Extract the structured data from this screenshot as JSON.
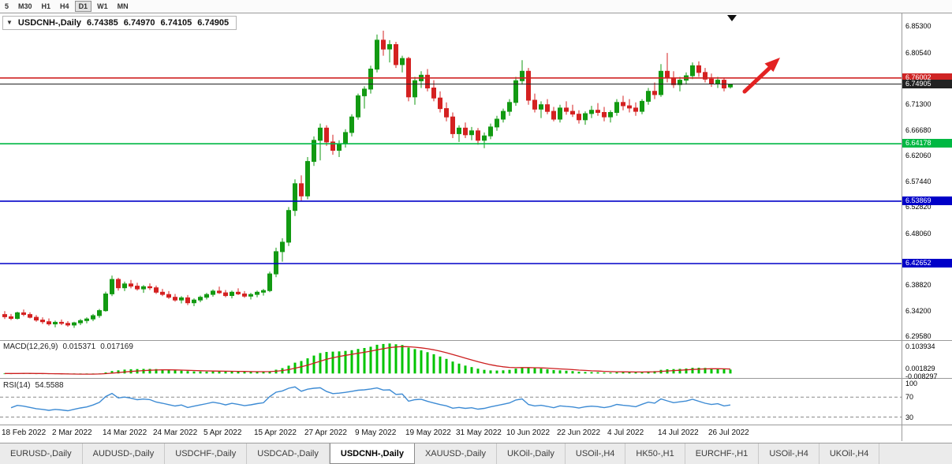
{
  "toolbar": {
    "timeframes": [
      {
        "label": "5",
        "active": false
      },
      {
        "label": "M30",
        "active": false
      },
      {
        "label": "H1",
        "active": false
      },
      {
        "label": "H4",
        "active": false
      },
      {
        "label": "D1",
        "active": true
      },
      {
        "label": "W1",
        "active": false
      },
      {
        "label": "MN",
        "active": false
      }
    ]
  },
  "chart": {
    "title": {
      "symbol": "USDCNH-,Daily",
      "open": "6.74385",
      "high": "6.74970",
      "low": "6.74105",
      "close": "6.74905"
    },
    "y_ticks": [
      {
        "label": "6.85300",
        "price": 6.853
      },
      {
        "label": "6.80540",
        "price": 6.8054
      },
      {
        "label": "6.71300",
        "price": 6.713
      },
      {
        "label": "6.66680",
        "price": 6.6668
      },
      {
        "label": "6.62060",
        "price": 6.6206
      },
      {
        "label": "6.57440",
        "price": 6.5744
      },
      {
        "label": "6.52820",
        "price": 6.5282
      },
      {
        "label": "6.48060",
        "price": 6.4806
      },
      {
        "label": "6.38820",
        "price": 6.3882
      },
      {
        "label": "6.34200",
        "price": 6.342
      },
      {
        "label": "6.29580",
        "price": 6.2958
      }
    ],
    "price_lines": [
      {
        "label": "6.76002",
        "price": 6.76002,
        "color": "#cf2424",
        "width": 1.6
      },
      {
        "label": "6.74905",
        "price": 6.74905,
        "color": "#222222",
        "width": 1,
        "current": true
      },
      {
        "label": "6.64178",
        "price": 6.64178,
        "color": "#00b843",
        "width": 1.6
      },
      {
        "label": "6.53869",
        "price": 6.53869,
        "color": "#0000c8",
        "width": 1.6
      },
      {
        "label": "6.42652",
        "price": 6.42652,
        "color": "#0000c8",
        "width": 1.6
      }
    ]
  },
  "macd": {
    "name": "MACD(12,26,9)",
    "value": "0.015371",
    "signal_value": "0.017169",
    "axis": [
      "0.103934",
      "0.001829",
      "-0.008297"
    ]
  },
  "rsi": {
    "name": "RSI(14)",
    "value": "54.5588",
    "axis": [
      100,
      70,
      30
    ],
    "levels": [
      70,
      30
    ]
  },
  "tabs": [
    {
      "label": "EURUSD-,Daily",
      "active": false
    },
    {
      "label": "AUDUSD-,Daily",
      "active": false
    },
    {
      "label": "USDCHF-,Daily",
      "active": false
    },
    {
      "label": "USDCAD-,Daily",
      "active": false
    },
    {
      "label": "USDCNH-,Daily",
      "active": true
    },
    {
      "label": "XAUUSD-,Daily",
      "active": false
    },
    {
      "label": "UKOil-,Daily",
      "active": false
    },
    {
      "label": "USOil-,H4",
      "active": false
    },
    {
      "label": "HK50-,H1",
      "active": false
    },
    {
      "label": "EURCHF-,H1",
      "active": false
    },
    {
      "label": "USOil-,H4",
      "active": false
    },
    {
      "label": "UKOil-,H4",
      "active": false
    }
  ],
  "colors": {
    "up": "#129a12",
    "down": "#d42121",
    "macd_hist": "#00c400",
    "macd_signal": "#cc1f1f",
    "rsi_line": "#3d8bd4",
    "arrow": "#e32222",
    "separator": "#9a9a9a"
  },
  "chart_data": {
    "type": "candlestick",
    "symbol": "USDCNH-",
    "timeframe": "Daily",
    "ohlc_current": {
      "open": 6.74385,
      "high": 6.7497,
      "low": 6.74105,
      "close": 6.74905
    },
    "ylim": [
      6.289,
      6.876
    ],
    "x_labels": [
      {
        "label": "18 Feb 2022",
        "i": 0
      },
      {
        "label": "2 Mar 2022",
        "i": 8
      },
      {
        "label": "14 Mar 2022",
        "i": 16
      },
      {
        "label": "24 Mar 2022",
        "i": 24
      },
      {
        "label": "5 Apr 2022",
        "i": 32
      },
      {
        "label": "15 Apr 2022",
        "i": 40
      },
      {
        "label": "27 Apr 2022",
        "i": 48
      },
      {
        "label": "9 May 2022",
        "i": 56
      },
      {
        "label": "19 May 2022",
        "i": 64
      },
      {
        "label": "31 May 2022",
        "i": 72
      },
      {
        "label": "10 Jun 2022",
        "i": 80
      },
      {
        "label": "22 Jun 2022",
        "i": 88
      },
      {
        "label": "4 Jul 2022",
        "i": 96
      },
      {
        "label": "14 Jul 2022",
        "i": 104
      },
      {
        "label": "26 Jul 2022",
        "i": 112
      }
    ],
    "candles": [
      [
        6.335,
        6.341,
        6.327,
        6.331
      ],
      [
        6.331,
        6.336,
        6.325,
        6.328
      ],
      [
        6.328,
        6.34,
        6.326,
        6.338
      ],
      [
        6.338,
        6.344,
        6.332,
        6.335
      ],
      [
        6.335,
        6.339,
        6.328,
        6.33
      ],
      [
        6.33,
        6.334,
        6.322,
        6.325
      ],
      [
        6.325,
        6.33,
        6.318,
        6.322
      ],
      [
        6.322,
        6.328,
        6.315,
        6.318
      ],
      [
        6.318,
        6.324,
        6.312,
        6.321
      ],
      [
        6.321,
        6.326,
        6.316,
        6.319
      ],
      [
        6.319,
        6.323,
        6.313,
        6.316
      ],
      [
        6.316,
        6.322,
        6.311,
        6.32
      ],
      [
        6.32,
        6.327,
        6.316,
        6.324
      ],
      [
        6.324,
        6.33,
        6.319,
        6.327
      ],
      [
        6.327,
        6.336,
        6.323,
        6.333
      ],
      [
        6.333,
        6.345,
        6.329,
        6.342
      ],
      [
        6.342,
        6.376,
        6.34,
        6.372
      ],
      [
        6.372,
        6.405,
        6.368,
        6.398
      ],
      [
        6.398,
        6.401,
        6.378,
        6.383
      ],
      [
        6.383,
        6.394,
        6.377,
        6.39
      ],
      [
        6.39,
        6.397,
        6.382,
        6.386
      ],
      [
        6.386,
        6.392,
        6.378,
        6.381
      ],
      [
        6.381,
        6.388,
        6.374,
        6.385
      ],
      [
        6.385,
        6.391,
        6.379,
        6.383
      ],
      [
        6.383,
        6.387,
        6.372,
        6.375
      ],
      [
        6.375,
        6.381,
        6.368,
        6.371
      ],
      [
        6.371,
        6.377,
        6.363,
        6.366
      ],
      [
        6.366,
        6.372,
        6.358,
        6.361
      ],
      [
        6.361,
        6.368,
        6.355,
        6.365
      ],
      [
        6.365,
        6.37,
        6.352,
        6.356
      ],
      [
        6.356,
        6.364,
        6.35,
        6.361
      ],
      [
        6.361,
        6.369,
        6.357,
        6.366
      ],
      [
        6.366,
        6.374,
        6.362,
        6.371
      ],
      [
        6.371,
        6.38,
        6.367,
        6.377
      ],
      [
        6.377,
        6.385,
        6.372,
        6.374
      ],
      [
        6.374,
        6.379,
        6.366,
        6.369
      ],
      [
        6.369,
        6.378,
        6.364,
        6.375
      ],
      [
        6.375,
        6.382,
        6.37,
        6.372
      ],
      [
        6.372,
        6.377,
        6.365,
        6.368
      ],
      [
        6.368,
        6.374,
        6.362,
        6.371
      ],
      [
        6.371,
        6.378,
        6.366,
        6.375
      ],
      [
        6.375,
        6.381,
        6.369,
        6.378
      ],
      [
        6.378,
        6.412,
        6.375,
        6.408
      ],
      [
        6.408,
        6.455,
        6.402,
        6.448
      ],
      [
        6.448,
        6.472,
        6.43,
        6.465
      ],
      [
        6.465,
        6.528,
        6.458,
        6.522
      ],
      [
        6.522,
        6.578,
        6.512,
        6.57
      ],
      [
        6.57,
        6.585,
        6.538,
        6.548
      ],
      [
        6.548,
        6.618,
        6.542,
        6.61
      ],
      [
        6.61,
        6.655,
        6.602,
        6.648
      ],
      [
        6.648,
        6.678,
        6.612,
        6.67
      ],
      [
        6.67,
        6.675,
        6.638,
        6.645
      ],
      [
        6.645,
        6.658,
        6.622,
        6.63
      ],
      [
        6.63,
        6.648,
        6.618,
        6.642
      ],
      [
        6.642,
        6.668,
        6.635,
        6.662
      ],
      [
        6.662,
        6.695,
        6.655,
        6.69
      ],
      [
        6.69,
        6.732,
        6.685,
        6.728
      ],
      [
        6.728,
        6.745,
        6.705,
        6.74
      ],
      [
        6.74,
        6.782,
        6.732,
        6.776
      ],
      [
        6.776,
        6.838,
        6.77,
        6.828
      ],
      [
        6.828,
        6.845,
        6.8,
        6.812
      ],
      [
        6.812,
        6.828,
        6.788,
        6.82
      ],
      [
        6.82,
        6.825,
        6.778,
        6.784
      ],
      [
        6.784,
        6.8,
        6.77,
        6.795
      ],
      [
        6.795,
        6.798,
        6.718,
        6.726
      ],
      [
        6.726,
        6.762,
        6.712,
        6.755
      ],
      [
        6.755,
        6.772,
        6.742,
        6.765
      ],
      [
        6.765,
        6.776,
        6.736,
        6.742
      ],
      [
        6.742,
        6.756,
        6.718,
        6.724
      ],
      [
        6.724,
        6.736,
        6.698,
        6.705
      ],
      [
        6.705,
        6.716,
        6.682,
        6.69
      ],
      [
        6.69,
        6.698,
        6.652,
        6.66
      ],
      [
        6.66,
        6.675,
        6.645,
        6.67
      ],
      [
        6.67,
        6.68,
        6.652,
        6.658
      ],
      [
        6.658,
        6.672,
        6.648,
        6.665
      ],
      [
        6.665,
        6.67,
        6.64,
        6.648
      ],
      [
        6.648,
        6.662,
        6.634,
        6.656
      ],
      [
        6.656,
        6.678,
        6.65,
        6.672
      ],
      [
        6.672,
        6.692,
        6.665,
        6.686
      ],
      [
        6.686,
        6.705,
        6.68,
        6.7
      ],
      [
        6.7,
        6.722,
        6.692,
        6.716
      ],
      [
        6.716,
        6.762,
        6.71,
        6.755
      ],
      [
        6.755,
        6.792,
        6.748,
        6.772
      ],
      [
        6.772,
        6.778,
        6.712,
        6.72
      ],
      [
        6.72,
        6.732,
        6.698,
        6.704
      ],
      [
        6.704,
        6.718,
        6.688,
        6.712
      ],
      [
        6.712,
        6.722,
        6.695,
        6.7
      ],
      [
        6.7,
        6.708,
        6.682,
        6.686
      ],
      [
        6.686,
        6.712,
        6.68,
        6.706
      ],
      [
        6.706,
        6.718,
        6.694,
        6.7
      ],
      [
        6.7,
        6.712,
        6.69,
        6.695
      ],
      [
        6.695,
        6.702,
        6.678,
        6.685
      ],
      [
        6.685,
        6.7,
        6.676,
        6.696
      ],
      [
        6.696,
        6.71,
        6.688,
        6.702
      ],
      [
        6.702,
        6.715,
        6.692,
        6.698
      ],
      [
        6.698,
        6.708,
        6.682,
        6.69
      ],
      [
        6.69,
        6.702,
        6.68,
        6.698
      ],
      [
        6.698,
        6.722,
        6.692,
        6.716
      ],
      [
        6.716,
        6.728,
        6.702,
        6.71
      ],
      [
        6.71,
        6.722,
        6.698,
        6.706
      ],
      [
        6.706,
        6.716,
        6.692,
        6.7
      ],
      [
        6.7,
        6.722,
        6.695,
        6.718
      ],
      [
        6.718,
        6.742,
        6.712,
        6.736
      ],
      [
        6.736,
        6.752,
        6.722,
        6.73
      ],
      [
        6.73,
        6.785,
        6.726,
        6.772
      ],
      [
        6.772,
        6.805,
        6.752,
        6.76
      ],
      [
        6.76,
        6.772,
        6.742,
        6.748
      ],
      [
        6.748,
        6.762,
        6.736,
        6.756
      ],
      [
        6.756,
        6.77,
        6.748,
        6.764
      ],
      [
        6.764,
        6.788,
        6.758,
        6.782
      ],
      [
        6.782,
        6.79,
        6.762,
        6.77
      ],
      [
        6.77,
        6.778,
        6.752,
        6.758
      ],
      [
        6.758,
        6.768,
        6.744,
        6.75
      ],
      [
        6.75,
        6.762,
        6.742,
        6.756
      ],
      [
        6.756,
        6.76,
        6.736,
        6.742
      ],
      [
        6.74385,
        6.7497,
        6.74105,
        6.74905
      ]
    ]
  }
}
